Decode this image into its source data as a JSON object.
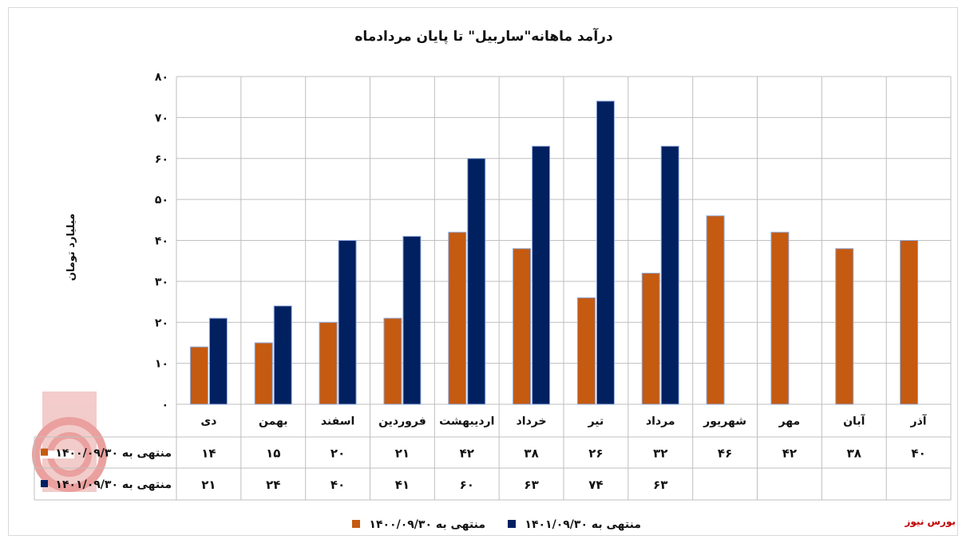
{
  "chart_data": {
    "type": "bar",
    "title": "درآمد ماهانه\"ساربیل\" تا پایان مردادماه",
    "ylabel": "میلیارد تومان",
    "ylim": [
      0,
      80
    ],
    "yticks": [
      "۰",
      "۱۰",
      "۲۰",
      "۳۰",
      "۴۰",
      "۵۰",
      "۶۰",
      "۷۰",
      "۸۰"
    ],
    "categories": [
      "دی",
      "بهمن",
      "اسفند",
      "فروردین",
      "اردیبهشت",
      "خرداد",
      "تیر",
      "مرداد",
      "شهریور",
      "مهر",
      "آبان",
      "آذر"
    ],
    "series": [
      {
        "name": "منتهی به ۱۴۰۰/۰۹/۳۰",
        "color": "#c55a11",
        "values": [
          14,
          15,
          20,
          21,
          42,
          38,
          26,
          32,
          46,
          42,
          38,
          40
        ],
        "labels": [
          "۱۴",
          "۱۵",
          "۲۰",
          "۲۱",
          "۴۲",
          "۳۸",
          "۲۶",
          "۳۲",
          "۴۶",
          "۴۲",
          "۳۸",
          "۴۰"
        ]
      },
      {
        "name": "منتهی به ۱۴۰۱/۰۹/۳۰",
        "color": "#002060",
        "values": [
          21,
          24,
          40,
          41,
          60,
          63,
          74,
          63,
          null,
          null,
          null,
          null
        ],
        "labels": [
          "۲۱",
          "۲۴",
          "۴۰",
          "۴۱",
          "۶۰",
          "۶۳",
          "۷۴",
          "۶۳",
          "",
          "",
          "",
          ""
        ]
      }
    ],
    "grid": true,
    "legend": "bottom",
    "data_table": true
  },
  "source": "بورس نیوز",
  "colors": {
    "grid": "#bfbfbf",
    "bar_edge": "#8faadc",
    "watermark": "#d9534f"
  },
  "watermark_icon": "bourse-news-logo-icon"
}
